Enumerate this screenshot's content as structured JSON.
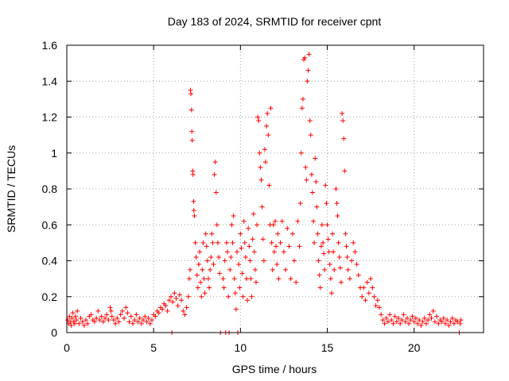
{
  "chart_data": {
    "type": "scatter",
    "title": "Day 183 of 2024, SRMTID for receiver cpnt",
    "xlabel": "GPS time / hours",
    "ylabel": "SRMTID / TECUs",
    "xlim": [
      0,
      24
    ],
    "ylim": [
      0,
      1.6
    ],
    "xticks": [
      0,
      5,
      10,
      15,
      20
    ],
    "xtick_labels": [
      "0",
      "5",
      "10",
      "15",
      "20"
    ],
    "yticks": [
      0,
      0.2,
      0.4,
      0.6,
      0.8,
      1,
      1.2,
      1.4,
      1.6
    ],
    "ytick_labels": [
      "0",
      "0.2",
      "0.4",
      "0.6",
      "0.8",
      "1",
      "1.2",
      "1.4",
      "1.6"
    ],
    "grid": true,
    "marker": "+",
    "color": "#ff0000",
    "series": [
      {
        "name": "SRMTID",
        "points": [
          [
            0.05,
            0.07
          ],
          [
            0.1,
            0.05
          ],
          [
            0.15,
            0.09
          ],
          [
            0.2,
            0.06
          ],
          [
            0.25,
            0.04
          ],
          [
            0.3,
            0.08
          ],
          [
            0.35,
            0.11
          ],
          [
            0.4,
            0.06
          ],
          [
            0.45,
            0.05
          ],
          [
            0.5,
            0.09
          ],
          [
            0.55,
            0.07
          ],
          [
            0.6,
            0.12
          ],
          [
            0.7,
            0.05
          ],
          [
            0.8,
            0.08
          ],
          [
            0.9,
            0.06
          ],
          [
            1.0,
            0.04
          ],
          [
            1.1,
            0.07
          ],
          [
            1.2,
            0.05
          ],
          [
            1.3,
            0.09
          ],
          [
            1.4,
            0.1
          ],
          [
            1.5,
            0.07
          ],
          [
            1.6,
            0.06
          ],
          [
            1.7,
            0.08
          ],
          [
            1.8,
            0.12
          ],
          [
            1.9,
            0.07
          ],
          [
            2.0,
            0.09
          ],
          [
            2.1,
            0.06
          ],
          [
            2.2,
            0.08
          ],
          [
            2.3,
            0.1
          ],
          [
            2.4,
            0.07
          ],
          [
            2.5,
            0.14
          ],
          [
            2.55,
            0.12
          ],
          [
            2.6,
            0.09
          ],
          [
            2.7,
            0.07
          ],
          [
            2.8,
            0.05
          ],
          [
            2.9,
            0.08
          ],
          [
            3.0,
            0.06
          ],
          [
            3.1,
            0.1
          ],
          [
            3.2,
            0.12
          ],
          [
            3.3,
            0.08
          ],
          [
            3.4,
            0.14
          ],
          [
            3.5,
            0.11
          ],
          [
            3.6,
            0.06
          ],
          [
            3.7,
            0.09
          ],
          [
            3.8,
            0.05
          ],
          [
            3.9,
            0.07
          ],
          [
            4.0,
            0.1
          ],
          [
            4.1,
            0.06
          ],
          [
            4.2,
            0.08
          ],
          [
            4.3,
            0.05
          ],
          [
            4.4,
            0.07
          ],
          [
            4.5,
            0.09
          ],
          [
            4.6,
            0.06
          ],
          [
            4.7,
            0.08
          ],
          [
            4.8,
            0.05
          ],
          [
            4.9,
            0.07
          ],
          [
            5.0,
            0.1
          ],
          [
            5.1,
            0.09
          ],
          [
            5.2,
            0.12
          ],
          [
            5.3,
            0.11
          ],
          [
            5.4,
            0.14
          ],
          [
            5.5,
            0.13
          ],
          [
            5.6,
            0.16
          ],
          [
            5.7,
            0.15
          ],
          [
            5.8,
            0.12
          ],
          [
            5.9,
            0.18
          ],
          [
            6.0,
            0.2
          ],
          [
            6.05,
            0.0
          ],
          [
            6.1,
            0.17
          ],
          [
            6.2,
            0.22
          ],
          [
            6.3,
            0.19
          ],
          [
            6.4,
            0.15
          ],
          [
            6.5,
            0.21
          ],
          [
            6.6,
            0.18
          ],
          [
            6.7,
            0.12
          ],
          [
            6.8,
            0.1
          ],
          [
            6.9,
            0.14
          ],
          [
            7.0,
            0.2
          ],
          [
            7.05,
            0.3
          ],
          [
            7.1,
            0.35
          ],
          [
            7.12,
            1.35
          ],
          [
            7.15,
            1.33
          ],
          [
            7.18,
            1.24
          ],
          [
            7.2,
            1.12
          ],
          [
            7.22,
            1.07
          ],
          [
            7.25,
            0.9
          ],
          [
            7.27,
            0.88
          ],
          [
            7.3,
            0.73
          ],
          [
            7.32,
            0.68
          ],
          [
            7.35,
            0.65
          ],
          [
            7.4,
            0.5
          ],
          [
            7.45,
            0.42
          ],
          [
            7.5,
            0.32
          ],
          [
            7.55,
            0.25
          ],
          [
            7.6,
            0.38
          ],
          [
            7.65,
            0.45
          ],
          [
            7.7,
            0.28
          ],
          [
            7.75,
            0.2
          ],
          [
            7.8,
            0.35
          ],
          [
            7.85,
            0.5
          ],
          [
            7.9,
            0.3
          ],
          [
            7.95,
            0.22
          ],
          [
            8.0,
            0.55
          ],
          [
            8.05,
            0.48
          ],
          [
            8.1,
            0.4
          ],
          [
            8.15,
            0.3
          ],
          [
            8.2,
            0.25
          ],
          [
            8.25,
            0.35
          ],
          [
            8.3,
            0.42
          ],
          [
            8.35,
            0.55
          ],
          [
            8.4,
            0.5
          ],
          [
            8.45,
            0.38
          ],
          [
            8.5,
            0.88
          ],
          [
            8.55,
            0.95
          ],
          [
            8.6,
            0.78
          ],
          [
            8.65,
            0.6
          ],
          [
            8.7,
            0.5
          ],
          [
            8.75,
            0.42
          ],
          [
            8.8,
            0.33
          ],
          [
            8.85,
            0.0
          ],
          [
            9.0,
            0.3
          ],
          [
            9.05,
            0.25
          ],
          [
            9.1,
            0.4
          ],
          [
            9.15,
            0.0
          ],
          [
            9.2,
            0.5
          ],
          [
            9.25,
            0.45
          ],
          [
            9.3,
            0.2
          ],
          [
            9.35,
            0.0
          ],
          [
            9.4,
            0.35
          ],
          [
            9.45,
            0.42
          ],
          [
            9.5,
            0.6
          ],
          [
            9.55,
            0.5
          ],
          [
            9.6,
            0.65
          ],
          [
            9.65,
            0.3
          ],
          [
            9.7,
            0.22
          ],
          [
            9.75,
            0.13
          ],
          [
            9.8,
            0.45
          ],
          [
            9.85,
            0.0
          ],
          [
            9.9,
            0.38
          ],
          [
            9.95,
            0.25
          ],
          [
            10.0,
            0.55
          ],
          [
            10.05,
            0.47
          ],
          [
            10.1,
            0.33
          ],
          [
            10.15,
            0.2
          ],
          [
            10.2,
            0.62
          ],
          [
            10.25,
            0.5
          ],
          [
            10.3,
            0.42
          ],
          [
            10.35,
            0.3
          ],
          [
            10.4,
            0.18
          ],
          [
            10.45,
            0.58
          ],
          [
            10.5,
            0.48
          ],
          [
            10.55,
            0.4
          ],
          [
            10.6,
            0.3
          ],
          [
            10.65,
            0.2
          ],
          [
            10.7,
            0.52
          ],
          [
            10.75,
            0.66
          ],
          [
            10.8,
            0.45
          ],
          [
            10.85,
            0.35
          ],
          [
            10.9,
            0.28
          ],
          [
            10.95,
            0.6
          ],
          [
            11.0,
            1.2
          ],
          [
            11.05,
            1.18
          ],
          [
            11.1,
            1.0
          ],
          [
            11.15,
            0.92
          ],
          [
            11.2,
            0.85
          ],
          [
            11.25,
            0.7
          ],
          [
            11.3,
            0.52
          ],
          [
            11.35,
            0.4
          ],
          [
            11.4,
            1.02
          ],
          [
            11.45,
            0.95
          ],
          [
            11.5,
            1.15
          ],
          [
            11.55,
            1.22
          ],
          [
            11.6,
            1.1
          ],
          [
            11.65,
            0.82
          ],
          [
            11.7,
            0.6
          ],
          [
            11.75,
            1.25
          ],
          [
            11.8,
            0.5
          ],
          [
            11.85,
            0.35
          ],
          [
            11.9,
            0.6
          ],
          [
            11.95,
            0.45
          ],
          [
            12.0,
            0.62
          ],
          [
            12.05,
            0.48
          ],
          [
            12.1,
            0.38
          ],
          [
            12.15,
            0.55
          ],
          [
            12.2,
            0.3
          ],
          [
            12.3,
            0.5
          ],
          [
            12.4,
            0.62
          ],
          [
            12.5,
            0.45
          ],
          [
            12.6,
            0.35
          ],
          [
            12.7,
            0.58
          ],
          [
            12.8,
            0.48
          ],
          [
            12.9,
            0.3
          ],
          [
            13.0,
            0.55
          ],
          [
            13.1,
            0.4
          ],
          [
            13.2,
            0.28
          ],
          [
            13.3,
            0.62
          ],
          [
            13.4,
            0.48
          ],
          [
            13.45,
            0.72
          ],
          [
            13.5,
            1.0
          ],
          [
            13.55,
            1.25
          ],
          [
            13.6,
            1.3
          ],
          [
            13.65,
            1.52
          ],
          [
            13.7,
            1.53
          ],
          [
            13.75,
            0.92
          ],
          [
            13.8,
            0.85
          ],
          [
            13.85,
            1.4
          ],
          [
            13.9,
            1.46
          ],
          [
            13.95,
            1.55
          ],
          [
            14.0,
            1.18
          ],
          [
            14.05,
            1.1
          ],
          [
            14.1,
            0.88
          ],
          [
            14.15,
            0.78
          ],
          [
            14.2,
            0.62
          ],
          [
            14.25,
            0.5
          ],
          [
            14.3,
            0.97
          ],
          [
            14.35,
            0.84
          ],
          [
            14.4,
            0.7
          ],
          [
            14.45,
            0.55
          ],
          [
            14.5,
            0.4
          ],
          [
            14.55,
            0.32
          ],
          [
            14.6,
            0.25
          ],
          [
            14.65,
            0.48
          ],
          [
            14.7,
            0.6
          ],
          [
            14.75,
            0.5
          ],
          [
            14.8,
            0.44
          ],
          [
            14.85,
            0.35
          ],
          [
            14.9,
            0.82
          ],
          [
            14.95,
            0.72
          ],
          [
            15.0,
            0.6
          ],
          [
            15.05,
            0.52
          ],
          [
            15.1,
            0.45
          ],
          [
            15.15,
            0.38
          ],
          [
            15.2,
            0.3
          ],
          [
            15.25,
            0.22
          ],
          [
            15.3,
            0.55
          ],
          [
            15.35,
            0.45
          ],
          [
            15.4,
            0.35
          ],
          [
            15.5,
            0.8
          ],
          [
            15.55,
            0.72
          ],
          [
            15.6,
            0.65
          ],
          [
            15.65,
            0.5
          ],
          [
            15.7,
            0.42
          ],
          [
            15.75,
            0.36
          ],
          [
            15.8,
            0.28
          ],
          [
            15.85,
            1.22
          ],
          [
            15.9,
            1.18
          ],
          [
            15.95,
            1.08
          ],
          [
            16.0,
            0.9
          ],
          [
            16.05,
            0.55
          ],
          [
            16.1,
            0.48
          ],
          [
            16.15,
            0.42
          ],
          [
            16.2,
            0.35
          ],
          [
            16.3,
            0.3
          ],
          [
            16.4,
            0.4
          ],
          [
            16.5,
            0.5
          ],
          [
            16.6,
            0.45
          ],
          [
            16.7,
            0.38
          ],
          [
            16.8,
            0.32
          ],
          [
            16.9,
            0.25
          ],
          [
            17.0,
            0.2
          ],
          [
            17.1,
            0.25
          ],
          [
            17.2,
            0.18
          ],
          [
            17.3,
            0.28
          ],
          [
            17.4,
            0.22
          ],
          [
            17.5,
            0.3
          ],
          [
            17.6,
            0.25
          ],
          [
            17.7,
            0.2
          ],
          [
            17.8,
            0.15
          ],
          [
            17.9,
            0.18
          ],
          [
            18.0,
            0.14
          ],
          [
            18.1,
            0.1
          ],
          [
            18.2,
            0.07
          ],
          [
            18.3,
            0.05
          ],
          [
            18.4,
            0.08
          ],
          [
            18.5,
            0.06
          ],
          [
            18.6,
            0.1
          ],
          [
            18.7,
            0.07
          ],
          [
            18.8,
            0.05
          ],
          [
            18.9,
            0.09
          ],
          [
            19.0,
            0.06
          ],
          [
            19.1,
            0.08
          ],
          [
            19.2,
            0.05
          ],
          [
            19.3,
            0.07
          ],
          [
            19.4,
            0.1
          ],
          [
            19.5,
            0.06
          ],
          [
            19.6,
            0.08
          ],
          [
            19.7,
            0.05
          ],
          [
            19.8,
            0.07
          ],
          [
            19.9,
            0.09
          ],
          [
            20.0,
            0.06
          ],
          [
            20.1,
            0.08
          ],
          [
            20.2,
            0.05
          ],
          [
            20.3,
            0.07
          ],
          [
            20.4,
            0.04
          ],
          [
            20.5,
            0.06
          ],
          [
            20.6,
            0.08
          ],
          [
            20.7,
            0.05
          ],
          [
            20.8,
            0.07
          ],
          [
            20.9,
            0.1
          ],
          [
            21.0,
            0.08
          ],
          [
            21.1,
            0.12
          ],
          [
            21.2,
            0.06
          ],
          [
            21.3,
            0.09
          ],
          [
            21.4,
            0.05
          ],
          [
            21.5,
            0.07
          ],
          [
            21.6,
            0.06
          ],
          [
            21.7,
            0.08
          ],
          [
            21.8,
            0.05
          ],
          [
            21.9,
            0.07
          ],
          [
            22.0,
            0.04
          ],
          [
            22.1,
            0.06
          ],
          [
            22.2,
            0.08
          ],
          [
            22.3,
            0.05
          ],
          [
            22.4,
            0.07
          ],
          [
            22.5,
            0.06
          ],
          [
            22.6,
            0.0
          ],
          [
            22.65,
            0.05
          ],
          [
            22.7,
            0.07
          ]
        ]
      }
    ]
  }
}
